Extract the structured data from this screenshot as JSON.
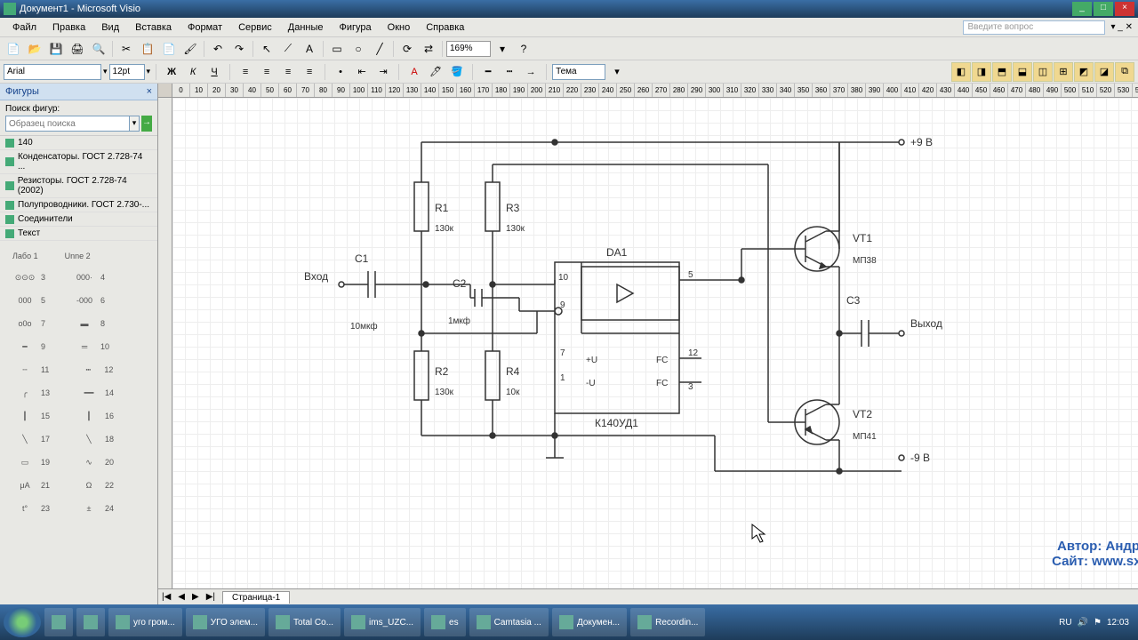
{
  "window": {
    "title": "Документ1 - Microsoft Visio"
  },
  "menu": {
    "items": [
      "Файл",
      "Правка",
      "Вид",
      "Вставка",
      "Формат",
      "Сервис",
      "Данные",
      "Фигура",
      "Окно",
      "Справка"
    ],
    "help_placeholder": "Введите вопрос"
  },
  "toolbar": {
    "zoom": "169%"
  },
  "format": {
    "font": "Arial",
    "size": "12pt",
    "theme": "Тема"
  },
  "shapes_panel": {
    "title": "Фигуры",
    "search_label": "Поиск фигур:",
    "search_placeholder": "Образец поиска",
    "stencils": [
      "140",
      "Конденсаторы. ГОСТ 2.728-74 ...",
      "Резисторы. ГОСТ 2.728-74 (2002)",
      "Полупроводники. ГОСТ 2.730-...",
      "Соединители",
      "Текст"
    ],
    "header1": "Лабо 1",
    "header2": "Unne 2"
  },
  "circuit": {
    "input_label": "Вход",
    "output_label": "Выход",
    "vplus": "+9 В",
    "vminus": "-9 В",
    "C1": {
      "ref": "С1",
      "val": "10мкф"
    },
    "C2": {
      "ref": "С2",
      "val": "1мкф"
    },
    "C3": {
      "ref": "С3"
    },
    "R1": {
      "ref": "R1",
      "val": "130к"
    },
    "R2": {
      "ref": "R2",
      "val": "130к"
    },
    "R3": {
      "ref": "R3",
      "val": "130к"
    },
    "R4": {
      "ref": "R4",
      "val": "10к"
    },
    "DA1": {
      "ref": "DA1",
      "part": "К140УД1",
      "pin10": "10",
      "pin9": "9",
      "pin7": "7",
      "pin1": "1",
      "pin5": "5",
      "pin12": "12",
      "pin3": "3",
      "pluslbl": "+U",
      "minuslbl": "-U",
      "fc": "FC"
    },
    "VT1": {
      "ref": "VT1",
      "part": "МП38"
    },
    "VT2": {
      "ref": "VT2",
      "part": "МП41"
    }
  },
  "page_tabs": {
    "tab1": "Страница-1"
  },
  "watermark": {
    "line1": "Автор: Андрей Гладышев,",
    "line2": "Сайт: www.sxemotehnika.ru"
  },
  "taskbar": {
    "items": [
      "",
      "",
      "уго гром...",
      "УГО элем...",
      "Total Co...",
      "ims_UZC...",
      "es",
      "Camtasia ...",
      "Докумен...",
      "Recordin..."
    ],
    "lang": "RU",
    "time": "12:03"
  }
}
